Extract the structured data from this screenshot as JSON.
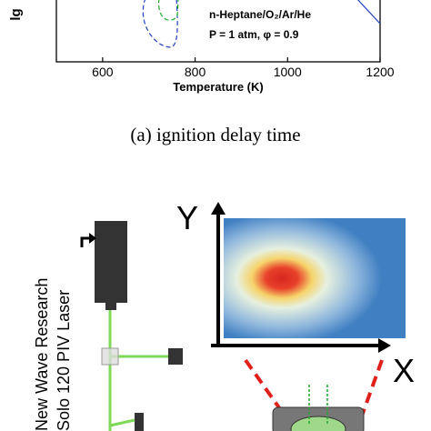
{
  "figure_a": {
    "y_label": "lg",
    "x_label": "Temperature (K)",
    "xlim": [
      500,
      1200
    ],
    "xticks": [
      600,
      800,
      1000,
      1200
    ],
    "annotation": [
      "n-Heptane/O₂/Ar/He",
      "P = 1 atm, φ = 0.9"
    ],
    "caption": "(a)  ignition delay time"
  },
  "figure_b": {
    "y_axis": "Y",
    "x_axis": "X",
    "laser_label": [
      "New Wave Research",
      "Solo 120 PIV Laser"
    ]
  }
}
